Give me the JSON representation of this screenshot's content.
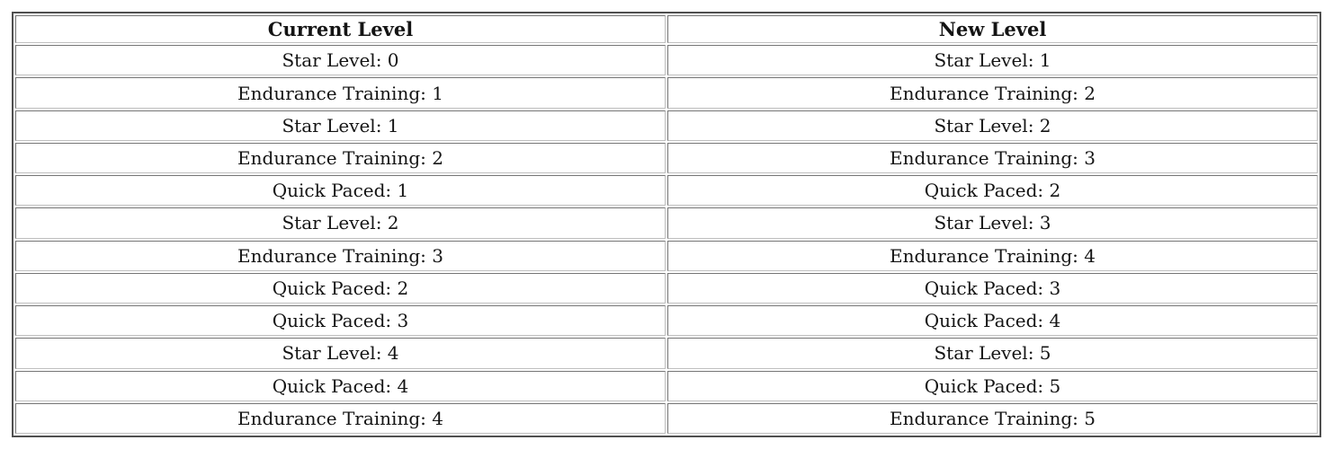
{
  "table": {
    "columns": [
      "Current Level",
      "New Level"
    ],
    "rows": [
      [
        "Star Level: 0",
        "Star Level: 1"
      ],
      [
        "Endurance Training: 1",
        "Endurance Training: 2"
      ],
      [
        "Star Level: 1",
        "Star Level: 2"
      ],
      [
        "Endurance Training: 2",
        "Endurance Training: 3"
      ],
      [
        "Quick Paced: 1",
        "Quick Paced: 2"
      ],
      [
        "Star Level: 2",
        "Star Level: 3"
      ],
      [
        "Endurance Training: 3",
        "Endurance Training: 4"
      ],
      [
        "Quick Paced: 2",
        "Quick Paced: 3"
      ],
      [
        "Quick Paced: 3",
        "Quick Paced: 4"
      ],
      [
        "Star Level: 4",
        "Star Level: 5"
      ],
      [
        "Quick Paced: 4",
        "Quick Paced: 5"
      ],
      [
        "Endurance Training: 4",
        "Endurance Training: 5"
      ]
    ]
  },
  "colors": {
    "page_background": "#ffffff",
    "cell_background": "#ffffff",
    "outer_border": "#4f4f4f",
    "cell_border_dark": "#757575",
    "cell_border_light": "#bfbfbf",
    "text": "#141414"
  }
}
